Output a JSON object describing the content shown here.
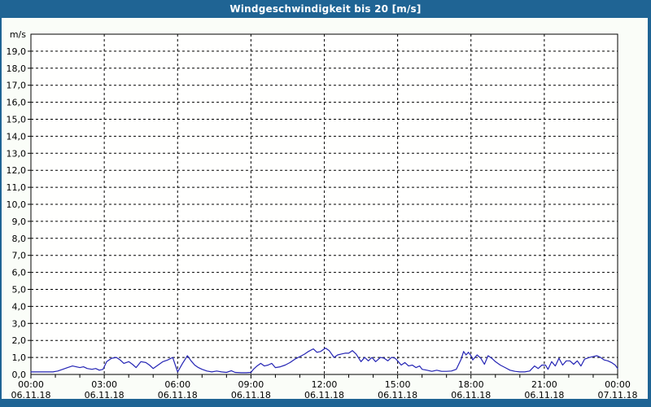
{
  "window": {
    "title": "Windgeschwindigkeit bis 20 [m/s]"
  },
  "colors": {
    "titlebar_bg": "#1f6494",
    "window_frame": "#1f6494",
    "content_bg": "#fafdf8",
    "plot_bg": "#fffffe",
    "grid": "#000000",
    "axis": "#000000",
    "text": "#000000",
    "line": "#2424b4"
  },
  "chart_data": {
    "type": "line",
    "title": "Windgeschwindigkeit bis 20 [m/s]",
    "y_unit_label": "m/s",
    "ylabel": "",
    "xlabel": "",
    "ylim": [
      0,
      20
    ],
    "y_tick_step": 1,
    "y_tick_decimal_separator": ",",
    "xlim_hours": [
      0,
      24
    ],
    "x_minor_tick_hours": 1,
    "x_major_tick_hours": 3,
    "grid_style": "dashed",
    "legend": "none",
    "x_major_ticks": [
      {
        "h": 0,
        "time": "00:00",
        "date": "06.11.18"
      },
      {
        "h": 3,
        "time": "03:00",
        "date": "06.11.18"
      },
      {
        "h": 6,
        "time": "06:00",
        "date": "06.11.18"
      },
      {
        "h": 9,
        "time": "09:00",
        "date": "06.11.18"
      },
      {
        "h": 12,
        "time": "12:00",
        "date": "06.11.18"
      },
      {
        "h": 15,
        "time": "15:00",
        "date": "06.11.18"
      },
      {
        "h": 18,
        "time": "18:00",
        "date": "06.11.18"
      },
      {
        "h": 21,
        "time": "21:00",
        "date": "06.11.18"
      },
      {
        "h": 24,
        "time": "00:00",
        "date": "07.11.18"
      }
    ],
    "series": [
      {
        "name": "Windgeschwindigkeit",
        "unit": "m/s",
        "color": "#2424b4",
        "points_t_hours_v_ms": [
          [
            0.0,
            0.15
          ],
          [
            0.3,
            0.15
          ],
          [
            0.6,
            0.15
          ],
          [
            0.9,
            0.15
          ],
          [
            1.1,
            0.2
          ],
          [
            1.3,
            0.3
          ],
          [
            1.5,
            0.4
          ],
          [
            1.7,
            0.5
          ],
          [
            1.85,
            0.45
          ],
          [
            2.0,
            0.4
          ],
          [
            2.15,
            0.45
          ],
          [
            2.3,
            0.35
          ],
          [
            2.5,
            0.3
          ],
          [
            2.65,
            0.35
          ],
          [
            2.8,
            0.25
          ],
          [
            2.95,
            0.3
          ],
          [
            3.1,
            0.75
          ],
          [
            3.3,
            0.95
          ],
          [
            3.5,
            1.0
          ],
          [
            3.65,
            0.85
          ],
          [
            3.8,
            0.65
          ],
          [
            4.0,
            0.75
          ],
          [
            4.15,
            0.6
          ],
          [
            4.3,
            0.4
          ],
          [
            4.5,
            0.75
          ],
          [
            4.7,
            0.7
          ],
          [
            4.85,
            0.55
          ],
          [
            5.0,
            0.35
          ],
          [
            5.2,
            0.55
          ],
          [
            5.4,
            0.75
          ],
          [
            5.6,
            0.85
          ],
          [
            5.8,
            1.0
          ],
          [
            6.0,
            0.15
          ],
          [
            6.2,
            0.65
          ],
          [
            6.4,
            1.1
          ],
          [
            6.55,
            0.8
          ],
          [
            6.7,
            0.55
          ],
          [
            6.85,
            0.4
          ],
          [
            7.0,
            0.3
          ],
          [
            7.2,
            0.2
          ],
          [
            7.4,
            0.15
          ],
          [
            7.6,
            0.2
          ],
          [
            7.8,
            0.15
          ],
          [
            8.0,
            0.12
          ],
          [
            8.2,
            0.22
          ],
          [
            8.35,
            0.12
          ],
          [
            8.6,
            0.1
          ],
          [
            8.8,
            0.1
          ],
          [
            9.0,
            0.12
          ],
          [
            9.1,
            0.3
          ],
          [
            9.25,
            0.5
          ],
          [
            9.4,
            0.65
          ],
          [
            9.55,
            0.5
          ],
          [
            9.7,
            0.55
          ],
          [
            9.85,
            0.65
          ],
          [
            10.0,
            0.4
          ],
          [
            10.2,
            0.45
          ],
          [
            10.4,
            0.55
          ],
          [
            10.6,
            0.7
          ],
          [
            10.8,
            0.9
          ],
          [
            11.0,
            1.05
          ],
          [
            11.2,
            1.2
          ],
          [
            11.35,
            1.35
          ],
          [
            11.55,
            1.5
          ],
          [
            11.7,
            1.3
          ],
          [
            11.85,
            1.35
          ],
          [
            12.05,
            1.55
          ],
          [
            12.2,
            1.4
          ],
          [
            12.4,
            1.0
          ],
          [
            12.55,
            1.15
          ],
          [
            12.7,
            1.2
          ],
          [
            12.85,
            1.25
          ],
          [
            13.0,
            1.25
          ],
          [
            13.15,
            1.4
          ],
          [
            13.3,
            1.2
          ],
          [
            13.5,
            0.75
          ],
          [
            13.65,
            1.0
          ],
          [
            13.8,
            0.8
          ],
          [
            13.95,
            1.0
          ],
          [
            14.1,
            0.75
          ],
          [
            14.3,
            1.0
          ],
          [
            14.45,
            0.95
          ],
          [
            14.6,
            0.8
          ],
          [
            14.75,
            1.0
          ],
          [
            14.9,
            0.95
          ],
          [
            15.0,
            0.8
          ],
          [
            15.15,
            0.55
          ],
          [
            15.3,
            0.7
          ],
          [
            15.45,
            0.5
          ],
          [
            15.6,
            0.55
          ],
          [
            15.75,
            0.4
          ],
          [
            15.9,
            0.5
          ],
          [
            16.0,
            0.3
          ],
          [
            16.2,
            0.25
          ],
          [
            16.4,
            0.18
          ],
          [
            16.6,
            0.25
          ],
          [
            16.8,
            0.18
          ],
          [
            17.0,
            0.18
          ],
          [
            17.2,
            0.2
          ],
          [
            17.4,
            0.3
          ],
          [
            17.6,
            0.9
          ],
          [
            17.7,
            1.35
          ],
          [
            17.8,
            1.15
          ],
          [
            17.9,
            1.3
          ],
          [
            18.0,
            1.1
          ],
          [
            18.07,
            0.85
          ],
          [
            18.25,
            1.15
          ],
          [
            18.4,
            0.95
          ],
          [
            18.55,
            0.6
          ],
          [
            18.7,
            1.1
          ],
          [
            18.85,
            0.95
          ],
          [
            19.0,
            0.75
          ],
          [
            19.2,
            0.55
          ],
          [
            19.4,
            0.4
          ],
          [
            19.6,
            0.25
          ],
          [
            19.8,
            0.18
          ],
          [
            20.0,
            0.15
          ],
          [
            20.2,
            0.15
          ],
          [
            20.4,
            0.2
          ],
          [
            20.6,
            0.5
          ],
          [
            20.75,
            0.35
          ],
          [
            20.9,
            0.55
          ],
          [
            21.05,
            0.55
          ],
          [
            21.15,
            0.3
          ],
          [
            21.3,
            0.75
          ],
          [
            21.45,
            0.5
          ],
          [
            21.6,
            0.95
          ],
          [
            21.75,
            0.55
          ],
          [
            21.9,
            0.8
          ],
          [
            22.05,
            0.8
          ],
          [
            22.2,
            0.6
          ],
          [
            22.35,
            0.8
          ],
          [
            22.5,
            0.5
          ],
          [
            22.65,
            0.9
          ],
          [
            22.85,
            1.0
          ],
          [
            23.0,
            1.05
          ],
          [
            23.15,
            1.1
          ],
          [
            23.3,
            1.0
          ],
          [
            23.45,
            0.85
          ],
          [
            23.6,
            0.8
          ],
          [
            23.75,
            0.7
          ],
          [
            23.9,
            0.55
          ],
          [
            24.0,
            0.35
          ]
        ]
      }
    ]
  }
}
